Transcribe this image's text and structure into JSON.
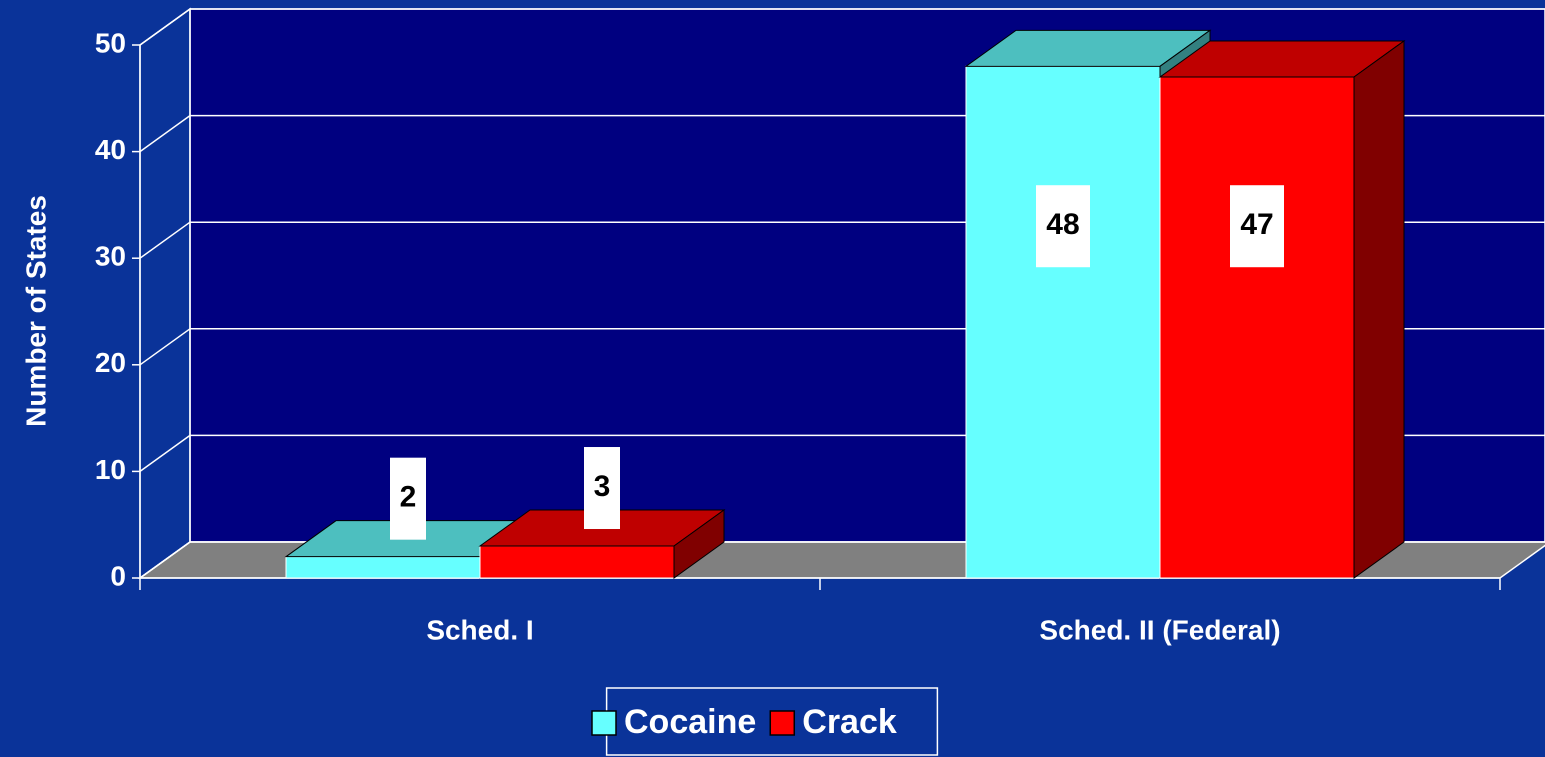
{
  "chart_data": {
    "type": "bar3d",
    "y_label": "Number of States",
    "categories": [
      "Sched. I",
      "Sched. II (Federal)"
    ],
    "series": [
      {
        "name": "Cocaine",
        "color": "#66ffff",
        "values": [
          2,
          48
        ]
      },
      {
        "name": "Crack",
        "color": "#ff0000",
        "values": [
          3,
          47
        ]
      }
    ],
    "ylim": [
      0,
      50
    ],
    "yticks": [
      0,
      10,
      20,
      30,
      40,
      50
    ],
    "grid": true,
    "legend": "bottom"
  }
}
